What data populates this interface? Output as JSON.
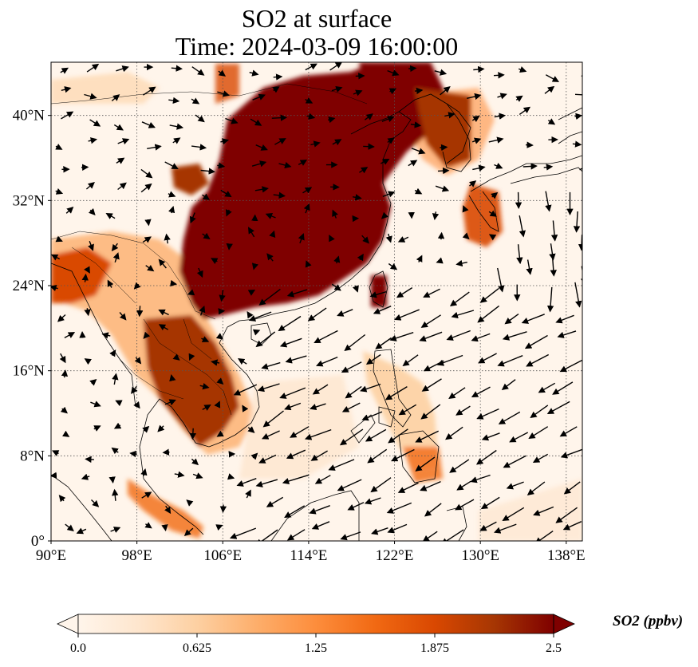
{
  "title": {
    "line1": "SO2 at surface",
    "line2": "Time: 2024-03-09 16:00:00"
  },
  "map": {
    "lon_range": [
      90,
      139.5
    ],
    "lat_range": [
      0,
      45
    ],
    "lon_ticks": [
      {
        "value": 90,
        "label": "90°E"
      },
      {
        "value": 98,
        "label": "98°E"
      },
      {
        "value": 106,
        "label": "106°E"
      },
      {
        "value": 114,
        "label": "114°E"
      },
      {
        "value": 122,
        "label": "122°E"
      },
      {
        "value": 130,
        "label": "130°E"
      },
      {
        "value": 138,
        "label": "138°E"
      }
    ],
    "lat_ticks": [
      {
        "value": 0,
        "label": "0°"
      },
      {
        "value": 8,
        "label": "8°N"
      },
      {
        "value": 16,
        "label": "16°N"
      },
      {
        "value": 24,
        "label": "24°N"
      },
      {
        "value": 32,
        "label": "32°N"
      },
      {
        "value": 40,
        "label": "40°N"
      }
    ],
    "grid_lines": "dotted",
    "background_color": "#fff5eb",
    "colormap_stops": [
      "#fff5eb",
      "#fee6ce",
      "#fdd0a2",
      "#fdae6b",
      "#fd8d3c",
      "#f16913",
      "#d94801",
      "#a63603",
      "#7f0000"
    ]
  },
  "colorbar": {
    "min": 0.0,
    "max": 2.5,
    "extend": "both",
    "ticks": [
      {
        "value": 0.0,
        "label": "0.0"
      },
      {
        "value": 0.625,
        "label": "0.625"
      },
      {
        "value": 1.25,
        "label": "1.25"
      },
      {
        "value": 1.875,
        "label": "1.875"
      },
      {
        "value": 2.5,
        "label": "2.5"
      }
    ],
    "label": "SO2 (ppbv)"
  }
}
